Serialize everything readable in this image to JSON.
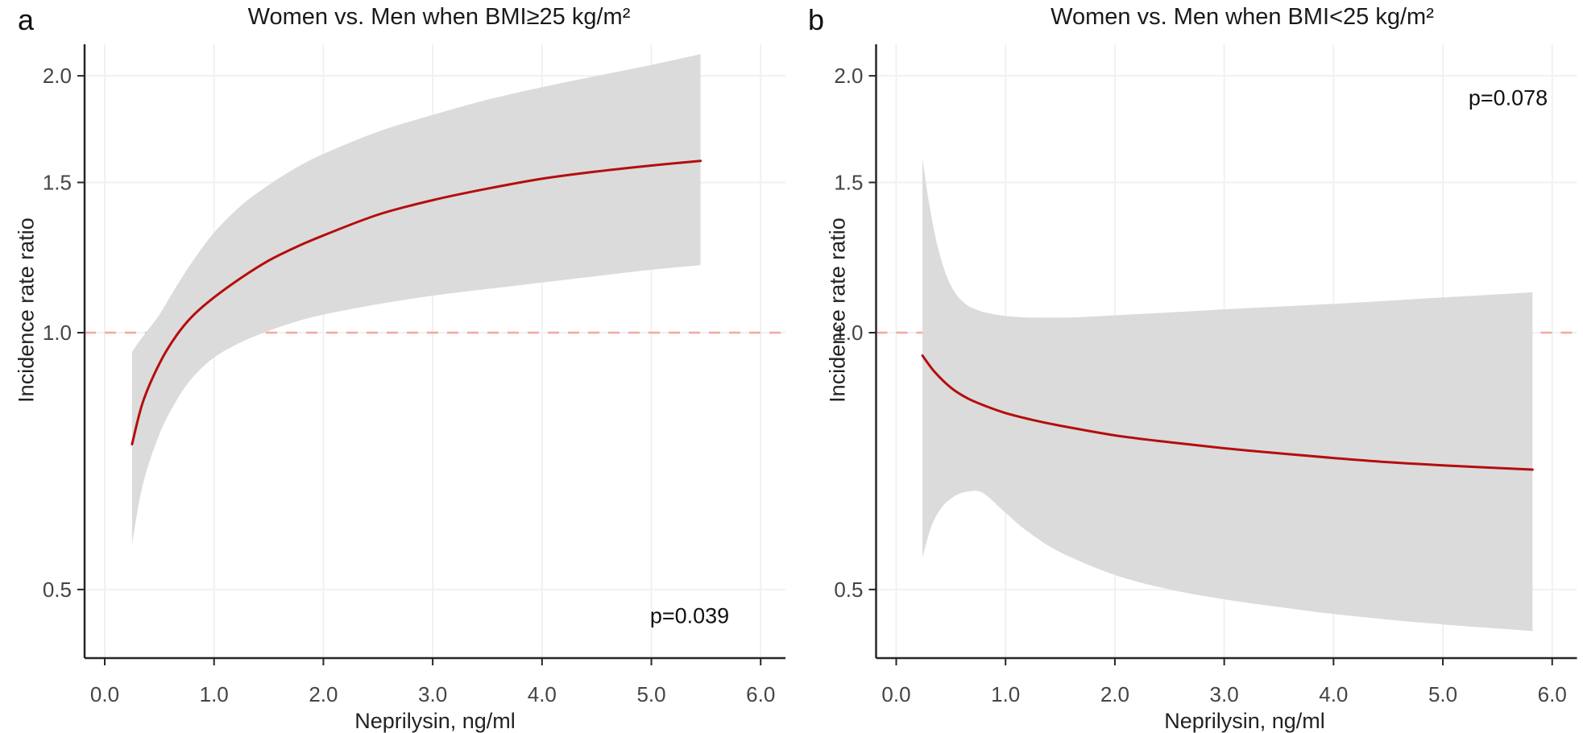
{
  "figure": {
    "y_axis_label": "Incidence rate ratio",
    "x_axis_label": "Neprilysin, ng/ml",
    "colors": {
      "curve": "#b50d0d",
      "reference_line": "#f5a79f",
      "ci_band": "#dbdbdb",
      "gridline": "#f1f1f1",
      "axis_line": "#262626",
      "tick_label": "#454545",
      "background": "#ffffff"
    }
  },
  "chart_data": [
    {
      "type": "line",
      "panel_letter": "a",
      "title": "Women vs. Men when BMI≥25 kg/m²",
      "p_value": "p=0.039",
      "p_value_position": "bottom-right",
      "xlabel": "Neprilysin, ng/ml",
      "ylabel": "Incidence rate ratio",
      "y_scale": "log",
      "xlim": [
        -0.18,
        6.23
      ],
      "ylim": [
        0.41,
        2.18
      ],
      "x_ticks": [
        0,
        1,
        2,
        3,
        4,
        5,
        6
      ],
      "x_tick_labels": [
        "0.0",
        "1.0",
        "2.0",
        "3.0",
        "4.0",
        "5.0",
        "6.0"
      ],
      "y_ticks": [
        2.0,
        1.5,
        1.0,
        0.5
      ],
      "y_tick_labels": [
        "2.0",
        "1.5",
        "1.0",
        "0.5"
      ],
      "reference_line_y": 1.0,
      "grid": true,
      "legend": "none",
      "series": [
        {
          "name": "IRR",
          "points": [
            [
              0.25,
              0.74
            ],
            [
              0.35,
              0.83
            ],
            [
              0.5,
              0.92
            ],
            [
              0.65,
              0.99
            ],
            [
              0.8,
              1.045
            ],
            [
              1.0,
              1.1
            ],
            [
              1.25,
              1.16
            ],
            [
              1.5,
              1.215
            ],
            [
              1.75,
              1.26
            ],
            [
              2.0,
              1.3
            ],
            [
              2.5,
              1.375
            ],
            [
              3.0,
              1.43
            ],
            [
              3.5,
              1.475
            ],
            [
              4.0,
              1.515
            ],
            [
              4.5,
              1.545
            ],
            [
              5.0,
              1.57
            ],
            [
              5.45,
              1.59
            ]
          ]
        },
        {
          "name": "CI upper",
          "points": [
            [
              0.25,
              0.95
            ],
            [
              0.35,
              0.99
            ],
            [
              0.5,
              1.05
            ],
            [
              0.65,
              1.13
            ],
            [
              0.8,
              1.21
            ],
            [
              1.0,
              1.31
            ],
            [
              1.25,
              1.41
            ],
            [
              1.5,
              1.49
            ],
            [
              1.75,
              1.56
            ],
            [
              2.0,
              1.62
            ],
            [
              2.5,
              1.72
            ],
            [
              3.0,
              1.8
            ],
            [
              3.5,
              1.875
            ],
            [
              4.0,
              1.94
            ],
            [
              4.5,
              2.0
            ],
            [
              5.0,
              2.06
            ],
            [
              5.45,
              2.12
            ]
          ]
        },
        {
          "name": "CI lower",
          "points": [
            [
              0.25,
              0.565
            ],
            [
              0.35,
              0.665
            ],
            [
              0.5,
              0.76
            ],
            [
              0.65,
              0.83
            ],
            [
              0.8,
              0.885
            ],
            [
              1.0,
              0.935
            ],
            [
              1.25,
              0.975
            ],
            [
              1.5,
              1.005
            ],
            [
              1.75,
              1.03
            ],
            [
              2.0,
              1.05
            ],
            [
              2.5,
              1.08
            ],
            [
              3.0,
              1.105
            ],
            [
              3.5,
              1.125
            ],
            [
              4.0,
              1.145
            ],
            [
              4.5,
              1.165
            ],
            [
              5.0,
              1.185
            ],
            [
              5.45,
              1.2
            ]
          ]
        }
      ]
    },
    {
      "type": "line",
      "panel_letter": "b",
      "title": "Women vs. Men when BMI<25 kg/m²",
      "p_value": "p=0.078",
      "p_value_position": "top-right",
      "xlabel": "Neprilysin, ng/ml",
      "ylabel": "Incidence rate ratio",
      "y_scale": "log",
      "xlim": [
        -0.18,
        6.23
      ],
      "ylim": [
        0.41,
        2.18
      ],
      "x_ticks": [
        0,
        1,
        2,
        3,
        4,
        5,
        6
      ],
      "x_tick_labels": [
        "0.0",
        "1.0",
        "2.0",
        "3.0",
        "4.0",
        "5.0",
        "6.0"
      ],
      "y_ticks": [
        2.0,
        1.5,
        1.0,
        0.5
      ],
      "y_tick_labels": [
        "2.0",
        "1.5",
        "1.0",
        "0.5"
      ],
      "reference_line_y": 1.0,
      "grid": true,
      "legend": "none",
      "series": [
        {
          "name": "IRR",
          "points": [
            [
              0.24,
              0.94
            ],
            [
              0.35,
              0.9
            ],
            [
              0.5,
              0.862
            ],
            [
              0.65,
              0.838
            ],
            [
              0.8,
              0.822
            ],
            [
              1.0,
              0.805
            ],
            [
              1.25,
              0.79
            ],
            [
              1.5,
              0.778
            ],
            [
              2.0,
              0.758
            ],
            [
              2.5,
              0.744
            ],
            [
              3.0,
              0.732
            ],
            [
              3.5,
              0.722
            ],
            [
              4.0,
              0.713
            ],
            [
              4.5,
              0.705
            ],
            [
              5.0,
              0.699
            ],
            [
              5.4,
              0.695
            ],
            [
              5.82,
              0.691
            ]
          ]
        },
        {
          "name": "CI upper",
          "points": [
            [
              0.24,
              1.6
            ],
            [
              0.3,
              1.42
            ],
            [
              0.38,
              1.26
            ],
            [
              0.48,
              1.15
            ],
            [
              0.6,
              1.09
            ],
            [
              0.75,
              1.062
            ],
            [
              0.95,
              1.048
            ],
            [
              1.2,
              1.042
            ],
            [
              1.6,
              1.042
            ],
            [
              2.0,
              1.048
            ],
            [
              2.5,
              1.056
            ],
            [
              3.0,
              1.065
            ],
            [
              3.5,
              1.073
            ],
            [
              4.0,
              1.081
            ],
            [
              4.5,
              1.09
            ],
            [
              5.0,
              1.1
            ],
            [
              5.4,
              1.107
            ],
            [
              5.82,
              1.115
            ]
          ]
        },
        {
          "name": "CI lower",
          "points": [
            [
              0.24,
              0.545
            ],
            [
              0.32,
              0.592
            ],
            [
              0.42,
              0.625
            ],
            [
              0.55,
              0.645
            ],
            [
              0.68,
              0.652
            ],
            [
              0.8,
              0.648
            ],
            [
              1.0,
              0.615
            ],
            [
              1.2,
              0.585
            ],
            [
              1.5,
              0.553
            ],
            [
              2.0,
              0.52
            ],
            [
              2.5,
              0.5
            ],
            [
              3.0,
              0.487
            ],
            [
              3.5,
              0.477
            ],
            [
              4.0,
              0.468
            ],
            [
              4.5,
              0.461
            ],
            [
              5.0,
              0.455
            ],
            [
              5.4,
              0.451
            ],
            [
              5.82,
              0.447
            ]
          ]
        }
      ]
    }
  ]
}
